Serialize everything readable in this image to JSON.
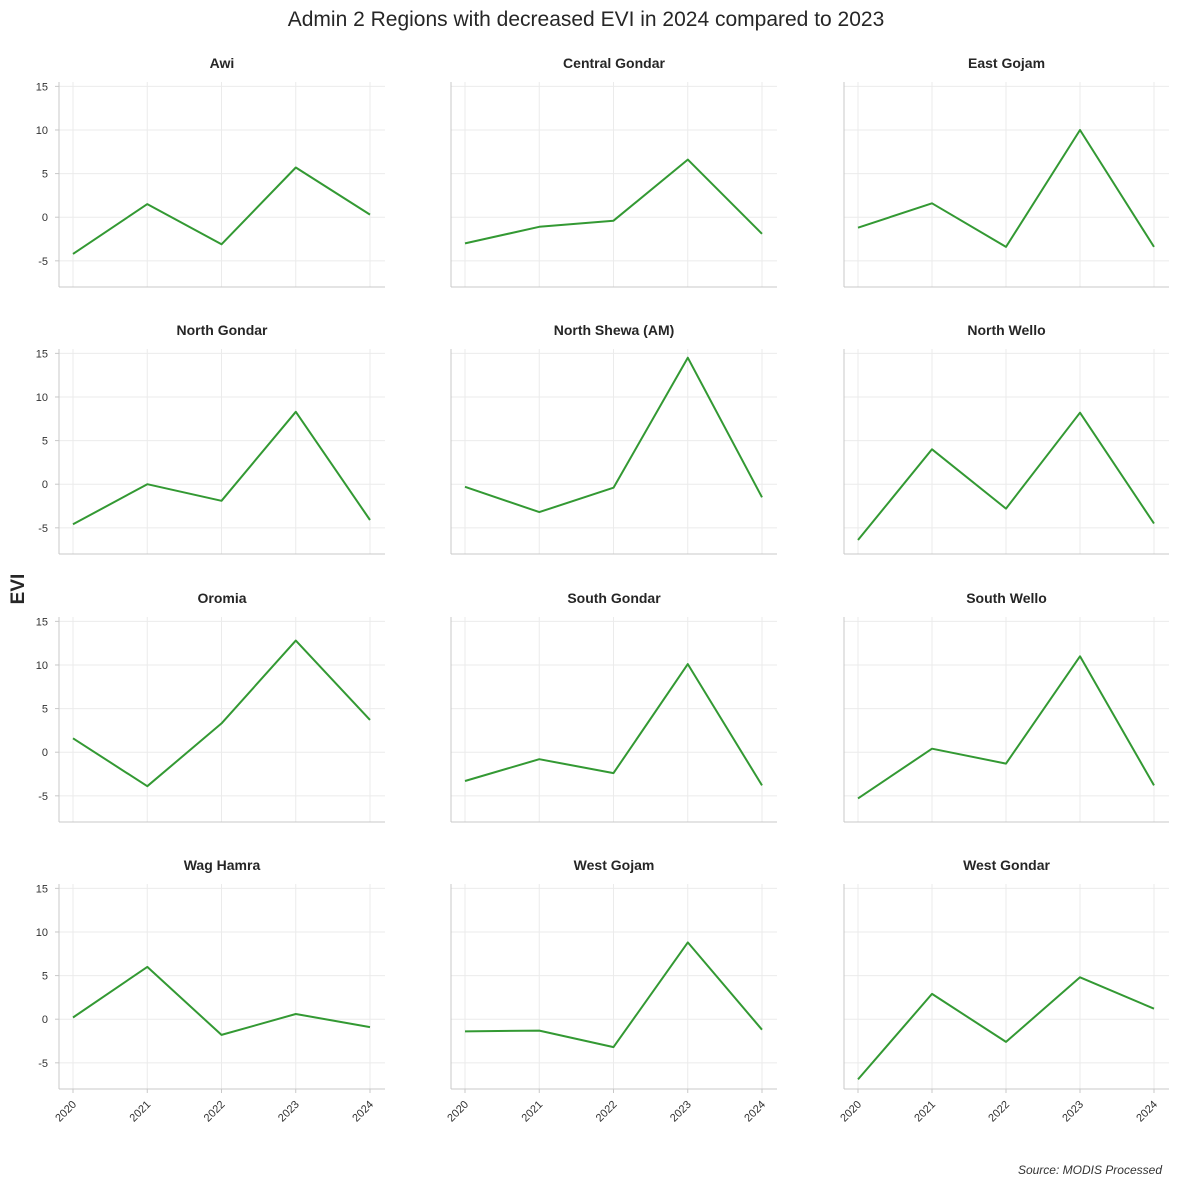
{
  "title": "Admin 2 Regions with decreased EVI in 2024 compared to 2023",
  "ylabel": "EVI",
  "source": "Source: MODIS Processed",
  "colors": {
    "line": "#339933"
  },
  "chart_data": {
    "type": "line",
    "layout": "small-multiples 4x3, shared axes",
    "x": [
      "2020",
      "2021",
      "2022",
      "2023",
      "2024"
    ],
    "ylim": [
      -8,
      15.5
    ],
    "yticks": [
      -5,
      0,
      5,
      10,
      15
    ],
    "grid": true,
    "panels": [
      {
        "title": "Awi",
        "values": [
          -4.2,
          1.5,
          -3.1,
          5.7,
          0.3
        ]
      },
      {
        "title": "Central Gondar",
        "values": [
          -3.0,
          -1.1,
          -0.4,
          6.6,
          -1.9
        ]
      },
      {
        "title": "East Gojam",
        "values": [
          -1.2,
          1.6,
          -3.4,
          10.0,
          -3.4
        ]
      },
      {
        "title": "North Gondar",
        "values": [
          -4.6,
          0.0,
          -1.9,
          8.3,
          -4.1
        ]
      },
      {
        "title": "North Shewa (AM)",
        "values": [
          -0.3,
          -3.2,
          -0.4,
          14.5,
          -1.5
        ]
      },
      {
        "title": "North Wello",
        "values": [
          -6.4,
          4.0,
          -2.8,
          8.2,
          -4.5
        ]
      },
      {
        "title": "Oromia",
        "values": [
          1.6,
          -3.9,
          3.3,
          12.8,
          3.7
        ]
      },
      {
        "title": "South Gondar",
        "values": [
          -3.3,
          -0.8,
          -2.4,
          10.1,
          -3.8
        ]
      },
      {
        "title": "South Wello",
        "values": [
          -5.3,
          0.4,
          -1.3,
          11.0,
          -3.8
        ]
      },
      {
        "title": "Wag Hamra",
        "values": [
          0.2,
          6.0,
          -1.8,
          0.6,
          -0.9
        ]
      },
      {
        "title": "West Gojam",
        "values": [
          -1.4,
          -1.3,
          -3.2,
          8.8,
          -1.2
        ]
      },
      {
        "title": "West Gondar",
        "values": [
          -6.9,
          2.9,
          -2.6,
          4.8,
          1.2
        ]
      }
    ]
  }
}
